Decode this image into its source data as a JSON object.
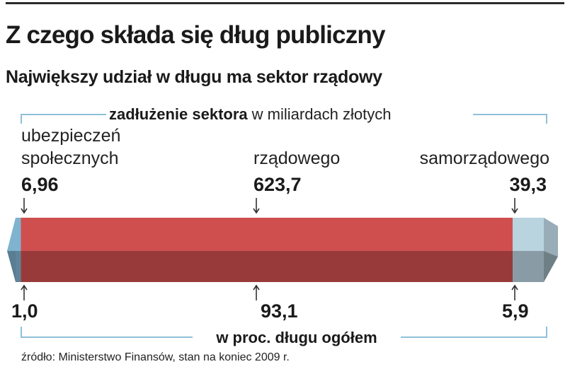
{
  "title": "Z czego składa się dług publiczny",
  "subtitle": "Największy udział w długu ma sektor rządowy",
  "source": "źródło: Ministerstwo Finansów, stan na koniec 2009 r.",
  "chart_data": {
    "type": "bar",
    "orientation": "horizontal-stacked",
    "top_header_bold": "zadłużenie sektora",
    "top_header_rest": "w miliardach złotych",
    "bottom_header": "w proc. długu ogółem",
    "categories": [
      {
        "label_line1": "ubezpieczeń",
        "label_line2": "społecznych",
        "value": 6.96,
        "value_text": "6,96",
        "percent": 1.0,
        "percent_text": "1,0",
        "color": "#7fb3d0"
      },
      {
        "label_line1": "rządowego",
        "label_line2": "",
        "value": 623.7,
        "value_text": "623,7",
        "percent": 93.1,
        "percent_text": "93,1",
        "color": "#cf4f4f"
      },
      {
        "label_line1": "samorządowego",
        "label_line2": "",
        "value": 39.3,
        "value_text": "39,3",
        "percent": 5.9,
        "percent_text": "5,9",
        "color": "#b9d3df"
      }
    ],
    "colors": {
      "bracket": "#8fc0d8",
      "dark_segment": "#9a3a3a"
    }
  }
}
